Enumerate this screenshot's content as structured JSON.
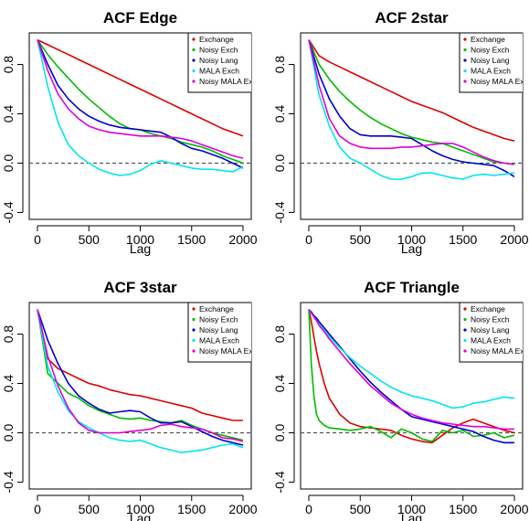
{
  "chart_data": [
    {
      "type": "line",
      "title": "ACF Edge",
      "xlabel": "Lag",
      "ylabel": "",
      "xlim": [
        0,
        2000
      ],
      "ylim": [
        -0.4,
        1.0
      ],
      "xticks": [
        0,
        500,
        1000,
        1500,
        2000
      ],
      "yticks": [
        -0.4,
        0.0,
        0.4,
        0.8
      ],
      "yticklabels": [
        "-0.4",
        "0.0",
        "0.4",
        "0.8"
      ],
      "reference_line": {
        "y": 0,
        "style": "dashed"
      },
      "legend": {
        "position": "top-right"
      },
      "x": [
        0,
        100,
        200,
        300,
        400,
        500,
        600,
        700,
        800,
        900,
        1000,
        1100,
        1200,
        1300,
        1400,
        1500,
        1600,
        1700,
        1800,
        1900,
        2000
      ],
      "series": [
        {
          "name": "Exchange",
          "color": "#dd0000",
          "values": [
            1.0,
            0.96,
            0.92,
            0.88,
            0.84,
            0.8,
            0.76,
            0.72,
            0.68,
            0.64,
            0.6,
            0.56,
            0.52,
            0.48,
            0.44,
            0.4,
            0.36,
            0.32,
            0.28,
            0.25,
            0.22
          ]
        },
        {
          "name": "Noisy Exch",
          "color": "#00bb00",
          "values": [
            1.0,
            0.88,
            0.78,
            0.69,
            0.6,
            0.52,
            0.45,
            0.38,
            0.32,
            0.28,
            0.27,
            0.24,
            0.22,
            0.2,
            0.17,
            0.15,
            0.13,
            0.1,
            0.06,
            0.03,
            0.0
          ]
        },
        {
          "name": "Noisy Lang",
          "color": "#0000cc",
          "values": [
            1.0,
            0.8,
            0.63,
            0.52,
            0.44,
            0.38,
            0.34,
            0.31,
            0.29,
            0.28,
            0.27,
            0.26,
            0.25,
            0.21,
            0.16,
            0.12,
            0.1,
            0.07,
            0.04,
            0.0,
            -0.04
          ]
        },
        {
          "name": "MALA Exch",
          "color": "#00e5ee",
          "values": [
            1.0,
            0.62,
            0.33,
            0.15,
            0.06,
            0.0,
            -0.05,
            -0.08,
            -0.1,
            -0.09,
            -0.06,
            -0.01,
            0.02,
            0.0,
            -0.02,
            -0.04,
            -0.05,
            -0.05,
            -0.06,
            -0.07,
            -0.03
          ]
        },
        {
          "name": "Noisy MALA Exch",
          "color": "#dd00dd",
          "values": [
            1.0,
            0.75,
            0.56,
            0.44,
            0.36,
            0.3,
            0.27,
            0.25,
            0.24,
            0.23,
            0.22,
            0.22,
            0.22,
            0.21,
            0.2,
            0.18,
            0.15,
            0.12,
            0.09,
            0.06,
            0.04
          ]
        }
      ]
    },
    {
      "type": "line",
      "title": "ACF 2star",
      "xlabel": "Lag",
      "ylabel": "",
      "xlim": [
        0,
        2000
      ],
      "ylim": [
        -0.4,
        1.0
      ],
      "xticks": [
        0,
        500,
        1000,
        1500,
        2000
      ],
      "yticks": [
        -0.4,
        0.0,
        0.4,
        0.8
      ],
      "yticklabels": [
        "-0.4",
        "0.0",
        "0.4",
        "0.8"
      ],
      "reference_line": {
        "y": 0,
        "style": "dashed"
      },
      "legend": {
        "position": "top-right"
      },
      "x": [
        0,
        100,
        200,
        300,
        400,
        500,
        600,
        700,
        800,
        900,
        1000,
        1100,
        1200,
        1300,
        1400,
        1500,
        1600,
        1700,
        1800,
        1900,
        2000
      ],
      "series": [
        {
          "name": "Exchange",
          "color": "#dd0000",
          "values": [
            1.0,
            0.87,
            0.82,
            0.78,
            0.74,
            0.7,
            0.66,
            0.62,
            0.58,
            0.54,
            0.5,
            0.47,
            0.44,
            0.41,
            0.37,
            0.33,
            0.29,
            0.26,
            0.23,
            0.2,
            0.18
          ]
        },
        {
          "name": "Noisy Exch",
          "color": "#00bb00",
          "values": [
            1.0,
            0.8,
            0.68,
            0.58,
            0.5,
            0.43,
            0.37,
            0.32,
            0.28,
            0.24,
            0.21,
            0.19,
            0.17,
            0.16,
            0.13,
            0.1,
            0.07,
            0.04,
            0.01,
            0.0,
            -0.01
          ]
        },
        {
          "name": "Noisy Lang",
          "color": "#0000cc",
          "values": [
            1.0,
            0.72,
            0.52,
            0.38,
            0.28,
            0.23,
            0.22,
            0.22,
            0.22,
            0.21,
            0.2,
            0.15,
            0.1,
            0.06,
            0.03,
            0.01,
            0.0,
            -0.01,
            -0.02,
            -0.06,
            -0.11
          ]
        },
        {
          "name": "MALA Exch",
          "color": "#00e5ee",
          "values": [
            1.0,
            0.55,
            0.3,
            0.13,
            0.04,
            0.0,
            -0.05,
            -0.1,
            -0.13,
            -0.13,
            -0.11,
            -0.08,
            -0.08,
            -0.1,
            -0.12,
            -0.13,
            -0.1,
            -0.09,
            -0.1,
            -0.09,
            -0.08
          ]
        },
        {
          "name": "Noisy MALA Exch",
          "color": "#dd00dd",
          "values": [
            1.0,
            0.63,
            0.36,
            0.22,
            0.16,
            0.13,
            0.12,
            0.12,
            0.12,
            0.13,
            0.13,
            0.14,
            0.15,
            0.16,
            0.16,
            0.13,
            0.09,
            0.05,
            0.02,
            0.0,
            -0.01
          ]
        }
      ]
    },
    {
      "type": "line",
      "title": "ACF 3star",
      "xlabel": "Lag",
      "ylabel": "",
      "xlim": [
        0,
        2000
      ],
      "ylim": [
        -0.4,
        1.0
      ],
      "xticks": [
        0,
        500,
        1000,
        1500,
        2000
      ],
      "yticks": [
        -0.4,
        0.0,
        0.4,
        0.8
      ],
      "yticklabels": [
        "-0.4",
        "0.0",
        "0.4",
        "0.8"
      ],
      "reference_line": {
        "y": 0,
        "style": "dashed"
      },
      "legend": {
        "position": "top-right"
      },
      "x": [
        0,
        100,
        200,
        300,
        400,
        500,
        600,
        700,
        800,
        900,
        1000,
        1100,
        1200,
        1300,
        1400,
        1500,
        1600,
        1700,
        1800,
        1900,
        2000
      ],
      "series": [
        {
          "name": "Exchange",
          "color": "#dd0000",
          "values": [
            1.0,
            0.6,
            0.52,
            0.48,
            0.44,
            0.4,
            0.38,
            0.35,
            0.33,
            0.31,
            0.3,
            0.28,
            0.26,
            0.24,
            0.22,
            0.2,
            0.16,
            0.14,
            0.12,
            0.1,
            0.1
          ]
        },
        {
          "name": "Noisy Exch",
          "color": "#00bb00",
          "values": [
            1.0,
            0.48,
            0.4,
            0.32,
            0.28,
            0.22,
            0.18,
            0.15,
            0.12,
            0.11,
            0.12,
            0.1,
            0.09,
            0.08,
            0.1,
            0.06,
            0.03,
            0.0,
            -0.02,
            -0.04,
            -0.06
          ]
        },
        {
          "name": "Noisy Lang",
          "color": "#0000cc",
          "values": [
            1.0,
            0.75,
            0.56,
            0.4,
            0.3,
            0.24,
            0.19,
            0.16,
            0.17,
            0.18,
            0.17,
            0.12,
            0.08,
            0.08,
            0.09,
            0.05,
            0.01,
            -0.03,
            -0.06,
            -0.08,
            -0.1
          ]
        },
        {
          "name": "MALA Exch",
          "color": "#00e5ee",
          "values": [
            1.0,
            0.54,
            0.33,
            0.18,
            0.09,
            0.04,
            0.0,
            -0.04,
            -0.06,
            -0.07,
            -0.06,
            -0.09,
            -0.12,
            -0.14,
            -0.16,
            -0.15,
            -0.14,
            -0.12,
            -0.1,
            -0.09,
            -0.12
          ]
        },
        {
          "name": "Noisy MALA Exch",
          "color": "#dd00dd",
          "values": [
            1.0,
            0.62,
            0.38,
            0.2,
            0.08,
            0.02,
            0.0,
            0.0,
            0.0,
            0.01,
            0.02,
            0.03,
            0.06,
            0.07,
            0.05,
            0.04,
            0.03,
            0.0,
            -0.04,
            -0.05,
            -0.07
          ]
        }
      ]
    },
    {
      "type": "line",
      "title": "ACF Triangle",
      "xlabel": "Lag",
      "ylabel": "",
      "xlim": [
        0,
        2000
      ],
      "ylim": [
        -0.4,
        1.0
      ],
      "xticks": [
        0,
        500,
        1000,
        1500,
        2000
      ],
      "yticks": [
        -0.4,
        0.0,
        0.4,
        0.8
      ],
      "yticklabels": [
        "-0.4",
        "0.0",
        "0.4",
        "0.8"
      ],
      "reference_line": {
        "y": 0,
        "style": "dashed"
      },
      "legend": {
        "position": "top-right"
      },
      "x": [
        0,
        25,
        50,
        75,
        100,
        150,
        200,
        300,
        400,
        500,
        600,
        700,
        800,
        900,
        1000,
        1100,
        1200,
        1300,
        1400,
        1500,
        1600,
        1700,
        1800,
        1900,
        2000
      ],
      "series": [
        {
          "name": "Exchange",
          "color": "#dd0000",
          "values": [
            1.0,
            0.9,
            0.78,
            0.66,
            0.56,
            0.4,
            0.28,
            0.15,
            0.08,
            0.05,
            0.04,
            0.03,
            0.02,
            -0.02,
            -0.05,
            -0.07,
            -0.08,
            -0.02,
            0.04,
            0.08,
            0.11,
            0.08,
            0.05,
            0.02,
            0.0
          ]
        },
        {
          "name": "Noisy Exch",
          "color": "#00bb00",
          "values": [
            1.0,
            0.55,
            0.3,
            0.15,
            0.1,
            0.06,
            0.04,
            0.03,
            0.02,
            0.03,
            0.05,
            0.01,
            -0.04,
            0.03,
            0.0,
            -0.05,
            -0.07,
            0.02,
            0.0,
            0.02,
            -0.03,
            -0.02,
            0.0,
            -0.04,
            -0.02
          ]
        },
        {
          "name": "Noisy Lang",
          "color": "#0000cc",
          "values": [
            1.0,
            0.98,
            0.95,
            0.93,
            0.9,
            0.85,
            0.8,
            0.7,
            0.6,
            0.5,
            0.41,
            0.33,
            0.26,
            0.19,
            0.13,
            0.11,
            0.09,
            0.07,
            0.05,
            0.03,
            0.01,
            -0.03,
            -0.06,
            -0.08,
            -0.08
          ]
        },
        {
          "name": "MALA Exch",
          "color": "#00e5ee",
          "values": [
            1.0,
            0.97,
            0.94,
            0.91,
            0.88,
            0.83,
            0.78,
            0.69,
            0.61,
            0.54,
            0.48,
            0.42,
            0.37,
            0.33,
            0.3,
            0.28,
            0.26,
            0.23,
            0.2,
            0.21,
            0.24,
            0.25,
            0.27,
            0.29,
            0.28
          ]
        },
        {
          "name": "Noisy MALA Exch",
          "color": "#dd00dd",
          "values": [
            1.0,
            0.97,
            0.94,
            0.91,
            0.87,
            0.82,
            0.76,
            0.66,
            0.56,
            0.47,
            0.38,
            0.31,
            0.24,
            0.19,
            0.15,
            0.12,
            0.1,
            0.08,
            0.07,
            0.06,
            0.05,
            0.05,
            0.04,
            0.03,
            0.03
          ]
        }
      ]
    }
  ]
}
